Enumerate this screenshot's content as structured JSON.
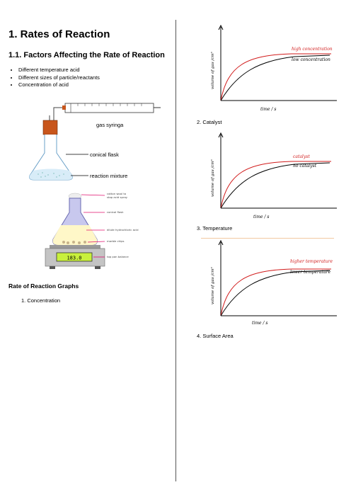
{
  "left": {
    "title": "1. Rates of Reaction",
    "subtitle": "1.1. Factors Affecting the Rate of Reaction",
    "bullets": [
      "Different temperature acid",
      "Different sizes of particle/reactants",
      "Concentration of acid"
    ],
    "apparatus1": {
      "syringe_label": "gas syringa",
      "flask_label": "conical flask",
      "mixture_label": "reaction mixture"
    },
    "apparatus2": {
      "labels": [
        "cotton wool to",
        "stop acid spray",
        "conical flask",
        "dilute hydrochloric acid",
        "marble chips",
        "top pan balance",
        "183.0"
      ]
    },
    "graphs_heading": "Rate of Reaction Graphs",
    "list_item_1": "1. Concentration"
  },
  "right": {
    "graph1": {
      "high_label": "high concentration",
      "low_label": "low concentration",
      "xlabel": "time / s",
      "ylabel": "volume of gas /cm³"
    },
    "item2": "2. Catalyst",
    "graph2": {
      "high_label": "catalyst",
      "low_label": "no catalyst",
      "xlabel": "time / s",
      "ylabel": "volume of gas /cm³"
    },
    "item3": "3. Temperature",
    "graph3": {
      "high_label": "higher temperature",
      "low_label": "lower temperature",
      "xlabel": "time / s",
      "ylabel": "volume of gas /cm³"
    },
    "item4": "4. Surface Area"
  },
  "colors": {
    "red_curve": "#d11a1a",
    "black_curve": "#000000",
    "flask_fill": "#fff7c8",
    "display": "#c8f03c",
    "arrow": "#e0106e",
    "stopper": "#c8561c"
  }
}
